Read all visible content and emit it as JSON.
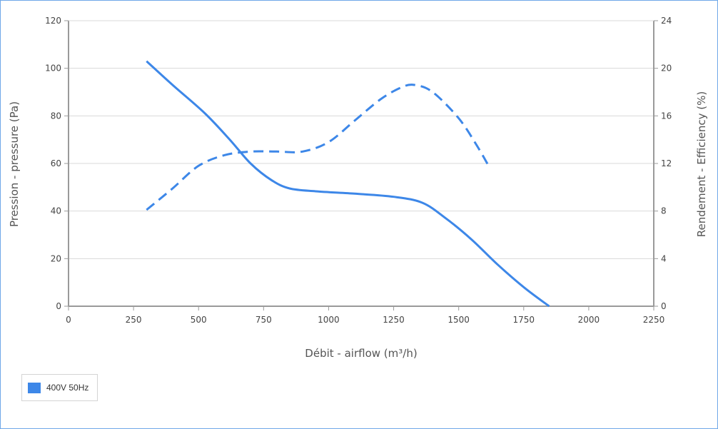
{
  "colors": {
    "series": "#3d87e8",
    "grid": "#d9d9d9",
    "axis": "#9a9a9a"
  },
  "chart_data": {
    "type": "line",
    "title": "",
    "xlabel": "Débit - airflow (m³/h)",
    "ylabel": "Pression - pressure (Pa)",
    "y2label": "Rendement - Efficiency (%)",
    "xlim": [
      0,
      2250
    ],
    "ylim": [
      0,
      120
    ],
    "y2lim": [
      0,
      24
    ],
    "xticks": [
      "0",
      "250",
      "500",
      "750",
      "1000",
      "1250",
      "1500",
      "1750",
      "2000",
      "2250"
    ],
    "yticks": [
      "0",
      "20",
      "40",
      "60",
      "80",
      "100",
      "120"
    ],
    "y2ticks": [
      "0",
      "4",
      "8",
      "12",
      "16",
      "20",
      "24"
    ],
    "grid": true,
    "legend_position": "bottom-left",
    "series": [
      {
        "name": "400V 50Hz",
        "axis": "left",
        "style": "solid",
        "x": [
          300,
          400,
          525,
          620,
          700,
          780,
          850,
          950,
          1100,
          1250,
          1360,
          1450,
          1550,
          1650,
          1750,
          1848
        ],
        "y": [
          103,
          93,
          81,
          70,
          60,
          53,
          49.5,
          48.3,
          47.3,
          46,
          43.5,
          37,
          28,
          17.5,
          8,
          0
        ]
      },
      {
        "name": "400V 50Hz",
        "axis": "right",
        "style": "dashed",
        "x": [
          300,
          400,
          500,
          600,
          700,
          800,
          900,
          1000,
          1100,
          1200,
          1280,
          1330,
          1400,
          1500,
          1570,
          1620
        ],
        "y": [
          8.1,
          9.9,
          11.8,
          12.7,
          13,
          13,
          13,
          13.8,
          15.6,
          17.4,
          18.4,
          18.6,
          18,
          15.8,
          13.5,
          11.6
        ]
      }
    ]
  },
  "legend": {
    "items": [
      {
        "label": "400V 50Hz"
      }
    ]
  }
}
